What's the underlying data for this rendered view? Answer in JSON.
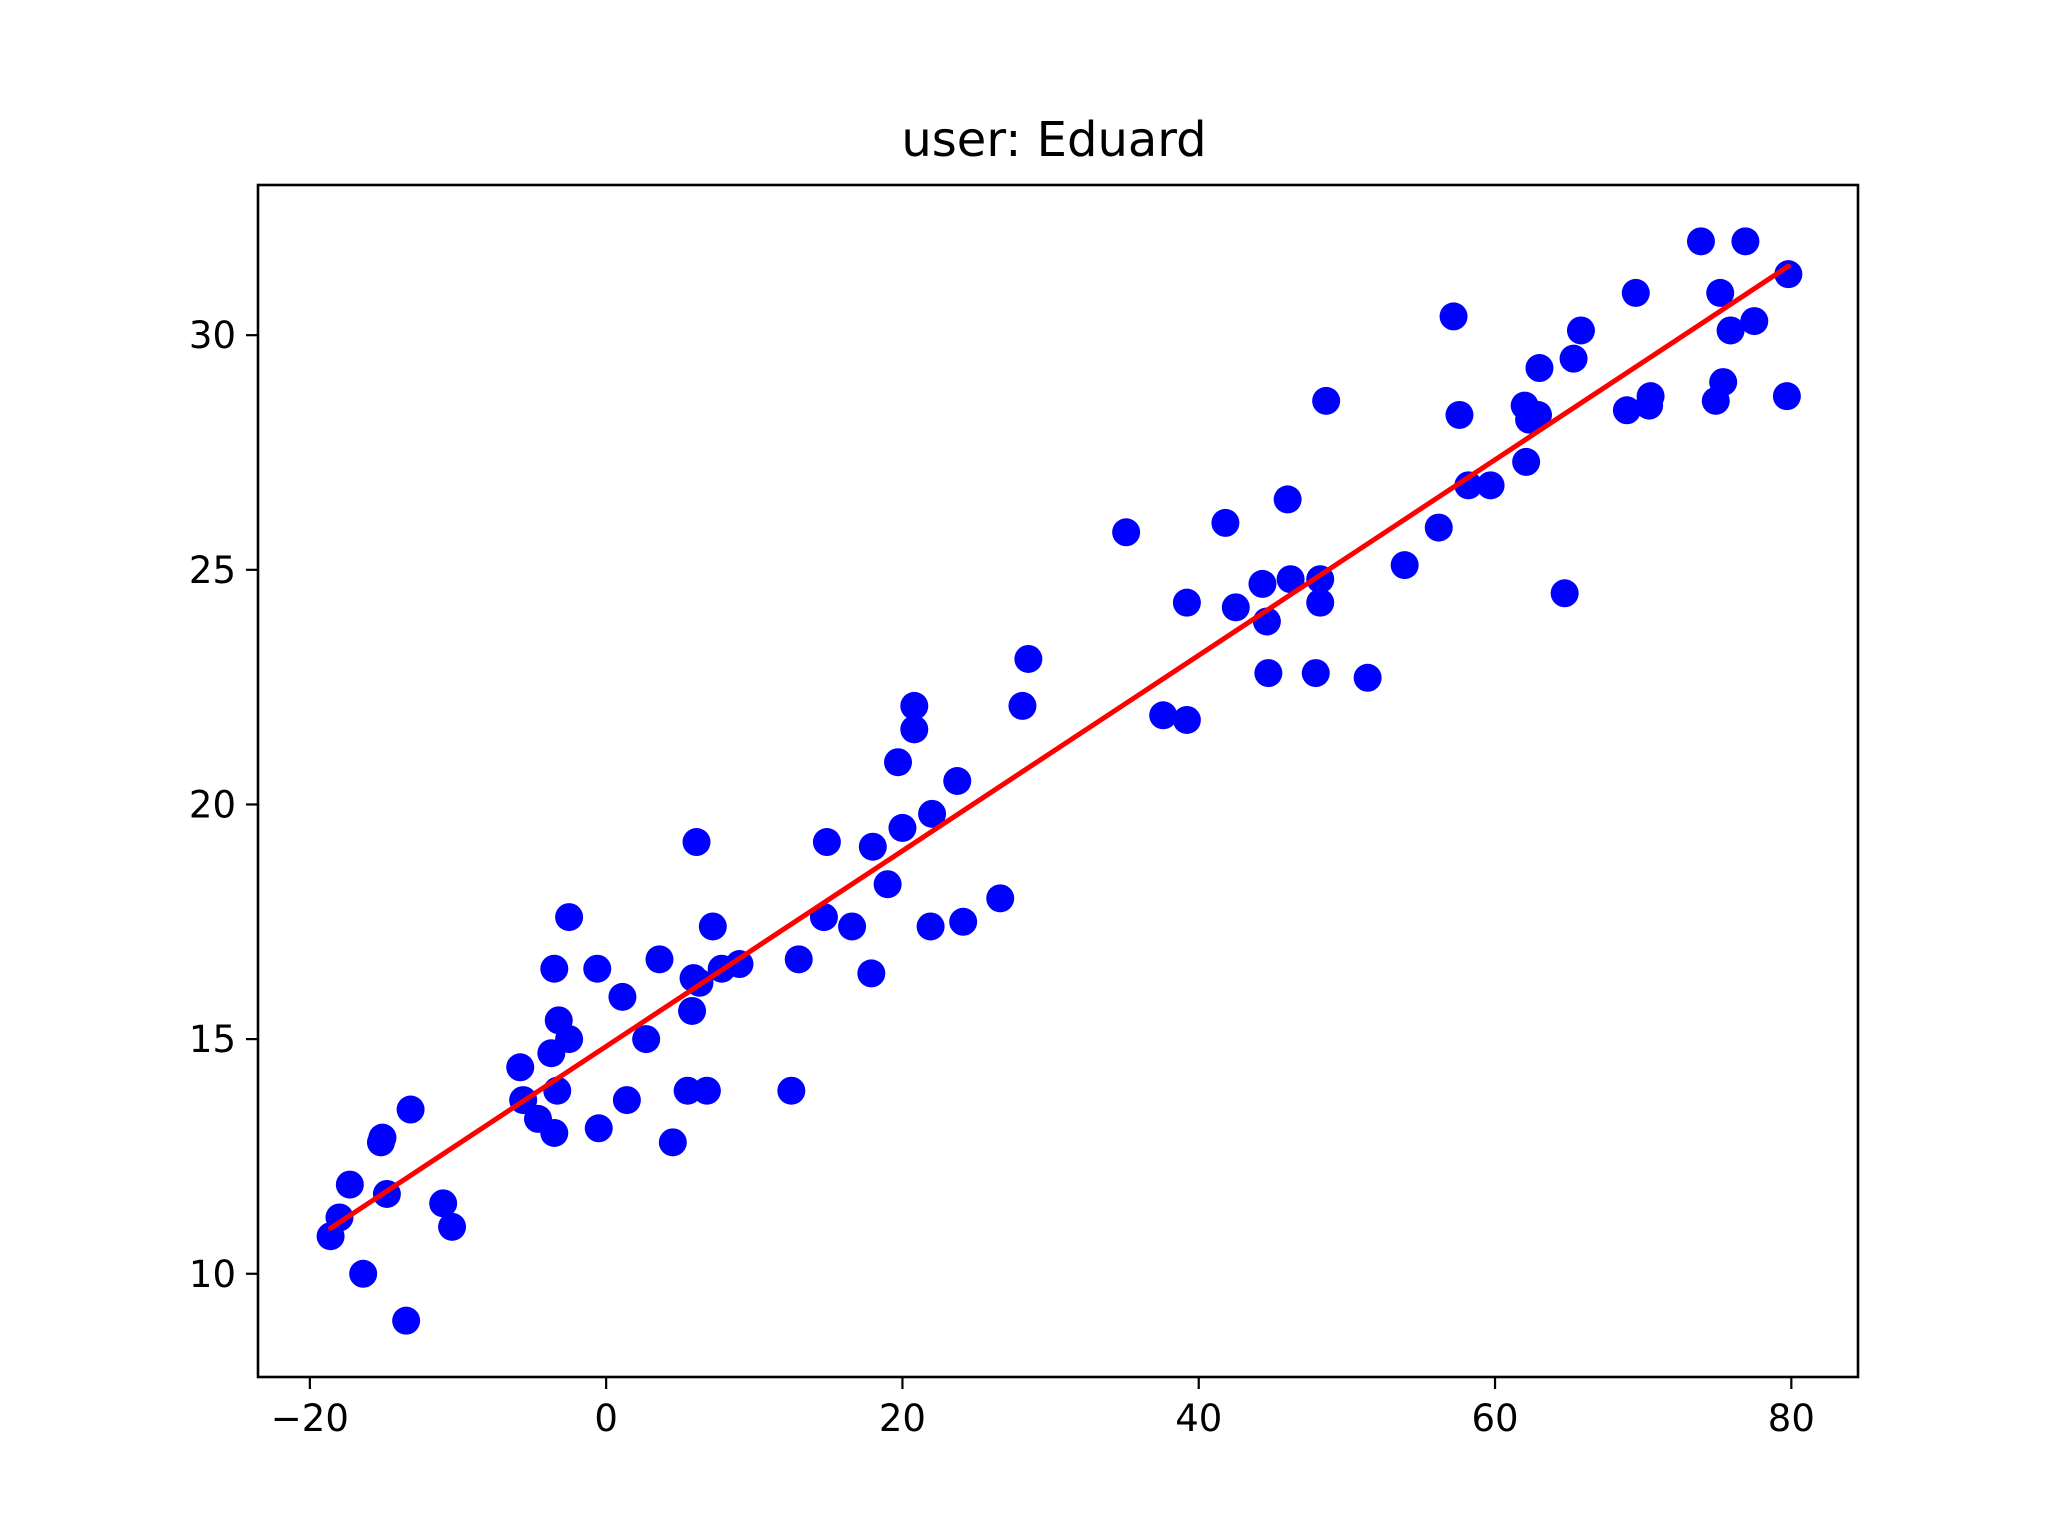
{
  "chart_data": {
    "type": "scatter",
    "title": "user: Eduard",
    "xlabel": "",
    "ylabel": "",
    "xlim": [
      -23.5,
      84.5
    ],
    "ylim": [
      7.8,
      33.2
    ],
    "x_ticks": [
      -20,
      0,
      20,
      40,
      60,
      80
    ],
    "x_tick_labels": [
      "−20",
      "0",
      "20",
      "40",
      "60",
      "80"
    ],
    "y_ticks": [
      10,
      15,
      20,
      25,
      30
    ],
    "y_tick_labels": [
      "10",
      "15",
      "20",
      "25",
      "30"
    ],
    "grid": false,
    "colors": {
      "points": "#0000ff",
      "fit_line": "#ff0000"
    },
    "series": [
      {
        "kind": "points",
        "x": [
          -18.6,
          -18.0,
          -17.3,
          -16.4,
          -15.2,
          -15.1,
          -14.8,
          -13.5,
          -13.2,
          -11.0,
          -10.4,
          -5.8,
          -5.6,
          -4.6,
          -3.7,
          -3.5,
          -3.5,
          -3.3,
          -3.2,
          -2.5,
          -2.5,
          -0.6,
          -0.5,
          1.1,
          1.4,
          2.7,
          3.6,
          4.5,
          5.5,
          5.8,
          5.9,
          6.1,
          6.3,
          6.8,
          7.2,
          7.8,
          9.0,
          12.5,
          13.0,
          14.7,
          14.9,
          16.6,
          17.9,
          18.0,
          19.0,
          19.7,
          20.0,
          20.8,
          20.8,
          21.9,
          22.0,
          23.7,
          24.1,
          26.6,
          28.1,
          28.5,
          35.1,
          37.6,
          39.2,
          39.2,
          41.8,
          42.5,
          44.3,
          44.6,
          44.7,
          46.0,
          46.2,
          47.9,
          48.2,
          48.2,
          48.6,
          51.4,
          53.9,
          56.2,
          57.2,
          57.6,
          58.2,
          59.7,
          62.0,
          62.1,
          62.3,
          62.9,
          63.0,
          64.7,
          65.3,
          65.8,
          68.9,
          69.5,
          70.4,
          70.5,
          73.9,
          74.9,
          75.2,
          75.4,
          75.9,
          76.9,
          77.5,
          79.7,
          79.8
        ],
        "y": [
          10.8,
          11.2,
          11.9,
          10.0,
          12.8,
          12.9,
          11.7,
          9.0,
          13.5,
          11.5,
          11.0,
          14.4,
          13.7,
          13.3,
          14.7,
          13.0,
          16.5,
          13.9,
          15.4,
          15.0,
          17.6,
          16.5,
          13.1,
          15.9,
          13.7,
          15.0,
          16.7,
          12.8,
          13.9,
          15.6,
          16.3,
          19.2,
          16.2,
          13.9,
          17.4,
          16.5,
          16.6,
          13.9,
          16.7,
          17.6,
          19.2,
          17.4,
          16.4,
          19.1,
          18.3,
          20.9,
          19.5,
          22.1,
          21.6,
          17.4,
          19.8,
          20.5,
          17.5,
          18.0,
          22.1,
          23.1,
          25.8,
          21.9,
          21.8,
          24.3,
          26.0,
          24.2,
          24.7,
          23.9,
          22.8,
          26.5,
          24.8,
          22.8,
          24.3,
          24.8,
          28.6,
          22.7,
          25.1,
          25.9,
          30.4,
          28.3,
          26.8,
          26.8,
          28.5,
          27.3,
          28.2,
          28.3,
          29.3,
          24.5,
          29.5,
          30.1,
          28.4,
          30.9,
          28.5,
          28.7,
          32.0,
          28.6,
          30.9,
          29.0,
          30.1,
          32.0,
          30.3,
          28.7,
          31.3
        ]
      },
      {
        "kind": "fit_line",
        "x": [
          -18.6,
          79.8
        ],
        "y": [
          10.97,
          31.47
        ]
      }
    ]
  }
}
